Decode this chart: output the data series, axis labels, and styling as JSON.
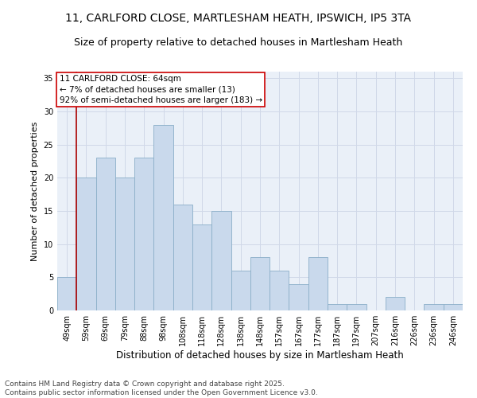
{
  "title1": "11, CARLFORD CLOSE, MARTLESHAM HEATH, IPSWICH, IP5 3TA",
  "title2": "Size of property relative to detached houses in Martlesham Heath",
  "xlabel": "Distribution of detached houses by size in Martlesham Heath",
  "ylabel": "Number of detached properties",
  "categories": [
    "49sqm",
    "59sqm",
    "69sqm",
    "79sqm",
    "88sqm",
    "98sqm",
    "108sqm",
    "118sqm",
    "128sqm",
    "138sqm",
    "148sqm",
    "157sqm",
    "167sqm",
    "177sqm",
    "187sqm",
    "197sqm",
    "207sqm",
    "216sqm",
    "226sqm",
    "236sqm",
    "246sqm"
  ],
  "values": [
    5,
    20,
    23,
    20,
    23,
    28,
    16,
    13,
    15,
    6,
    8,
    6,
    4,
    8,
    1,
    1,
    0,
    2,
    0,
    1,
    1
  ],
  "bar_color": "#c9d9ec",
  "bar_edge_color": "#8aaec8",
  "vline_color": "#aa0000",
  "vline_x_index": 1,
  "annotation_text": "11 CARLFORD CLOSE: 64sqm\n← 7% of detached houses are smaller (13)\n92% of semi-detached houses are larger (183) →",
  "annotation_box_color": "#ffffff",
  "annotation_box_edge_color": "#cc0000",
  "ylim": [
    0,
    36
  ],
  "yticks": [
    0,
    5,
    10,
    15,
    20,
    25,
    30,
    35
  ],
  "grid_color": "#d0d8e8",
  "background_color": "#eaf0f8",
  "footer_text": "Contains HM Land Registry data © Crown copyright and database right 2025.\nContains public sector information licensed under the Open Government Licence v3.0.",
  "title_fontsize": 10,
  "subtitle_fontsize": 9,
  "xlabel_fontsize": 8.5,
  "ylabel_fontsize": 8,
  "tick_fontsize": 7,
  "annotation_fontsize": 7.5,
  "footer_fontsize": 6.5
}
